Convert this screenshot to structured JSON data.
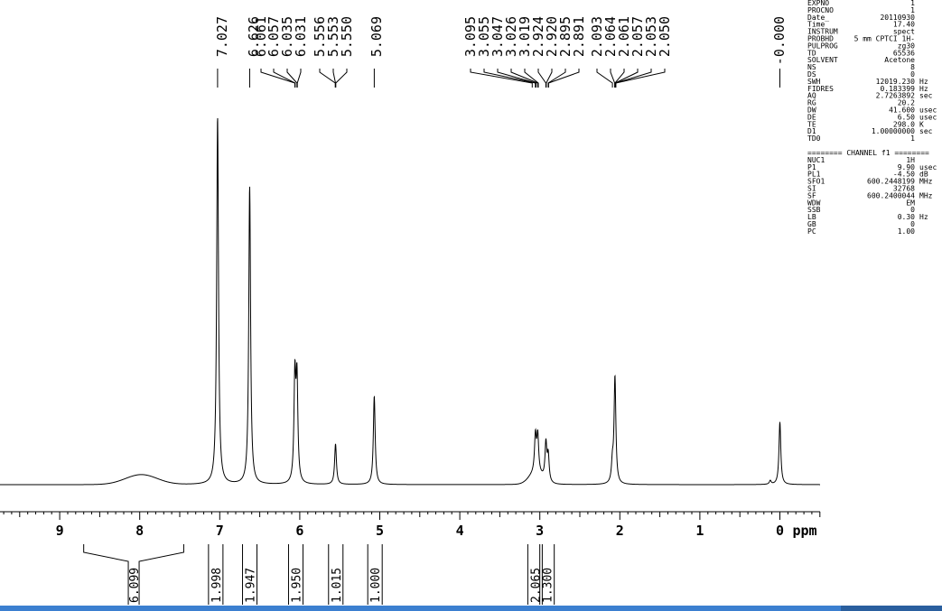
{
  "chart_data": {
    "type": "line",
    "x_unit": "ppm",
    "xlim": [
      -0.5,
      10.0
    ],
    "x_reversed": true,
    "x_ticks": [
      9,
      8,
      7,
      6,
      5,
      4,
      3,
      2,
      1,
      0
    ],
    "x_tick_labels": [
      "9",
      "8",
      "7",
      "6",
      "5",
      "4",
      "3",
      "2",
      "1",
      "0"
    ],
    "peak_labels": [
      "7.027",
      "6.626",
      "6.061",
      "6.057",
      "6.035",
      "6.031",
      "5.556",
      "5.553",
      "5.550",
      "5.069",
      "3.095",
      "3.055",
      "3.047",
      "3.026",
      "3.019",
      "2.924",
      "2.920",
      "2.895",
      "2.891",
      "2.093",
      "2.064",
      "2.061",
      "2.057",
      "2.053",
      "2.050",
      "-0.000"
    ],
    "peaks": [
      {
        "ppm": 7.027,
        "height": 1.0
      },
      {
        "ppm": 6.626,
        "height": 0.81
      },
      {
        "ppm": 6.061,
        "height": 0.28
      },
      {
        "ppm": 6.035,
        "height": 0.27
      },
      {
        "ppm": 5.553,
        "height": 0.11
      },
      {
        "ppm": 5.069,
        "height": 0.24
      },
      {
        "ppm": 3.055,
        "height": 0.1
      },
      {
        "ppm": 3.026,
        "height": 0.1
      },
      {
        "ppm": 2.924,
        "height": 0.1
      },
      {
        "ppm": 2.895,
        "height": 0.07
      },
      {
        "ppm": 2.093,
        "height": 0.05
      },
      {
        "ppm": 2.061,
        "height": 0.29
      },
      {
        "ppm": 0.12,
        "height": 0.01
      },
      {
        "ppm": 0.0,
        "height": 0.17
      }
    ],
    "broad_humps": [
      {
        "ppm": 7.98,
        "height": 0.027,
        "width": 0.28
      },
      {
        "ppm": 3.05,
        "height": 0.03,
        "width": 0.12
      }
    ],
    "integrals": [
      {
        "from": 8.7,
        "to": 7.45,
        "value": "6.099"
      },
      {
        "from": 7.15,
        "to": 6.95,
        "value": "1.998"
      },
      {
        "from": 6.75,
        "to": 6.5,
        "value": "1.947"
      },
      {
        "from": 6.15,
        "to": 5.95,
        "value": "1.950"
      },
      {
        "from": 5.65,
        "to": 5.45,
        "value": "1.015"
      },
      {
        "from": 5.15,
        "to": 4.97,
        "value": "1.000"
      },
      {
        "from": 3.15,
        "to": 2.97,
        "value": "2.065"
      },
      {
        "from": 2.97,
        "to": 2.85,
        "value": "1.300"
      }
    ],
    "axis_unit_label": "ppm",
    "grid": false
  },
  "parameters": {
    "acquisition": [
      [
        "EXPNO",
        "1",
        ""
      ],
      [
        "PROCNO",
        "1",
        ""
      ],
      [
        "Date_",
        "20110930",
        ""
      ],
      [
        "Time",
        "17.40",
        ""
      ],
      [
        "INSTRUM",
        "spect",
        ""
      ],
      [
        "PROBHD",
        "5 mm CPTCI 1H-",
        ""
      ],
      [
        "PULPROG",
        "zg30",
        ""
      ],
      [
        "TD",
        "65536",
        ""
      ],
      [
        "SOLVENT",
        "Acetone",
        ""
      ],
      [
        "NS",
        "8",
        ""
      ],
      [
        "DS",
        "0",
        ""
      ],
      [
        "SWH",
        "12019.230",
        "Hz"
      ],
      [
        "FIDRES",
        "0.183399",
        "Hz"
      ],
      [
        "AQ",
        "2.7263892",
        "sec"
      ],
      [
        "RG",
        "20.2",
        ""
      ],
      [
        "DW",
        "41.600",
        "usec"
      ],
      [
        "DE",
        "6.50",
        "usec"
      ],
      [
        "TE",
        "298.0",
        "K"
      ],
      [
        "D1",
        "1.00000000",
        "sec"
      ],
      [
        "TD0",
        "1",
        ""
      ]
    ],
    "channel_header": "======== CHANNEL f1 ========",
    "channel": [
      [
        "NUC1",
        "1H",
        ""
      ],
      [
        "P1",
        "9.90",
        "usec"
      ],
      [
        "PL1",
        "-4.50",
        "dB"
      ],
      [
        "SFO1",
        "600.2448199",
        "MHz"
      ],
      [
        "SI",
        "32768",
        ""
      ],
      [
        "SF",
        "600.2400044",
        "MHz"
      ],
      [
        "WDW",
        "EM",
        ""
      ],
      [
        "SSB",
        "0",
        ""
      ],
      [
        "LB",
        "0.30",
        "Hz"
      ],
      [
        "GB",
        "0",
        ""
      ],
      [
        "PC",
        "1.00",
        ""
      ]
    ]
  }
}
